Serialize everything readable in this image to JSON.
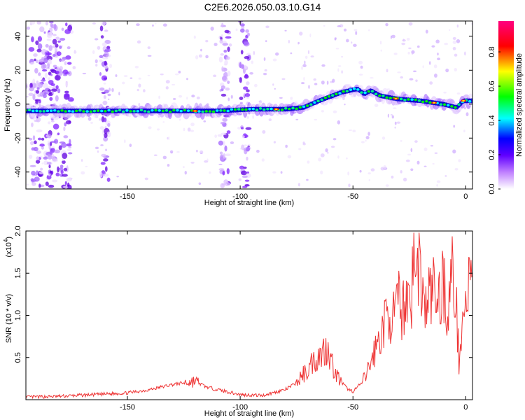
{
  "title": "C2E6.2026.050.03.10.G14",
  "chart_data": [
    {
      "type": "heatmap",
      "xlabel": "Height of straight line (km)",
      "ylabel": "Frequency (Hz)",
      "xlim": [
        -195,
        3
      ],
      "ylim": [
        -50,
        49
      ],
      "xticks": [
        -150,
        -100,
        -50,
        0
      ],
      "yticks": [
        -40,
        -20,
        0,
        20,
        40
      ],
      "colorbar": {
        "label": "Normalized spectral amplitude",
        "range": [
          0,
          0.98
        ],
        "ticks": [
          0.0,
          0.2,
          0.4,
          0.6,
          0.8
        ],
        "colors": [
          "#ffffff",
          "#8000ff",
          "#0000ff",
          "#00ffff",
          "#00ff00",
          "#ffff00",
          "#ff0000",
          "#ff0080"
        ]
      },
      "ridge": {
        "x": [
          -195,
          -170,
          -150,
          -130,
          -110,
          -95,
          -80,
          -72,
          -65,
          -55,
          -48,
          -45,
          -42,
          -38,
          -30,
          -20,
          -10,
          -4,
          -1,
          1
        ],
        "y": [
          -4,
          -4,
          -4,
          -4,
          -4,
          -3,
          -3,
          -2,
          2,
          7,
          9,
          6,
          8,
          5,
          3,
          2,
          0,
          -2,
          2,
          2
        ]
      },
      "noise_bands_x": [
        -188,
        -180,
        -160,
        -107,
        -98
      ]
    },
    {
      "type": "line",
      "xlabel": "Height of straight line (km)",
      "ylabel": "SNR (10 * v/v)",
      "scale_label": "(x10",
      "scale_exp": "4",
      "scale_close": ")",
      "xlim": [
        -195,
        3
      ],
      "ylim": [
        0,
        2.0
      ],
      "xticks": [
        -150,
        -100,
        -50,
        0
      ],
      "yticks": [
        0.5,
        1.0,
        1.5,
        2.0
      ],
      "color": "#ee3333",
      "x": [
        -195,
        -180,
        -165,
        -150,
        -140,
        -130,
        -125,
        -120,
        -115,
        -110,
        -100,
        -90,
        -80,
        -75,
        -72,
        -70,
        -68,
        -66,
        -64,
        -62,
        -61,
        -60,
        -58,
        -55,
        -52,
        -50,
        -48,
        -46,
        -44,
        -42,
        -40,
        -38,
        -36,
        -34,
        -32,
        -30,
        -28,
        -26,
        -24,
        -23,
        -22,
        -21,
        -20,
        -19,
        -18,
        -16,
        -14,
        -12,
        -10,
        -8,
        -6,
        -4,
        -3,
        -2,
        -1,
        0,
        1,
        2,
        3
      ],
      "y": [
        0.03,
        0.04,
        0.06,
        0.08,
        0.12,
        0.18,
        0.2,
        0.22,
        0.15,
        0.12,
        0.06,
        0.05,
        0.12,
        0.2,
        0.3,
        0.35,
        0.45,
        0.5,
        0.55,
        0.6,
        0.65,
        0.5,
        0.32,
        0.2,
        0.12,
        0.1,
        0.15,
        0.2,
        0.3,
        0.45,
        0.6,
        0.75,
        0.9,
        1.05,
        0.95,
        1.15,
        1.05,
        1.3,
        1.2,
        1.9,
        1.3,
        1.65,
        1.5,
        1.2,
        1.05,
        1.25,
        1.3,
        1.15,
        1.45,
        1.0,
        1.55,
        1.0,
        0.45,
        0.85,
        1.0,
        1.1,
        1.3,
        1.4,
        1.3
      ]
    }
  ]
}
